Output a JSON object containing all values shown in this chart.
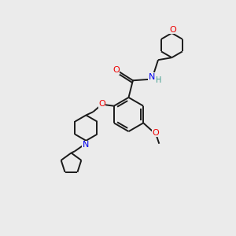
{
  "background_color": "#ebebeb",
  "bond_color": "#1a1a1a",
  "N_color": "#0000ee",
  "O_color": "#ee0000",
  "H_color": "#3a9a8a",
  "figsize": [
    3.0,
    3.0
  ],
  "dpi": 100,
  "xlim": [
    0,
    10
  ],
  "ylim": [
    0,
    10
  ]
}
